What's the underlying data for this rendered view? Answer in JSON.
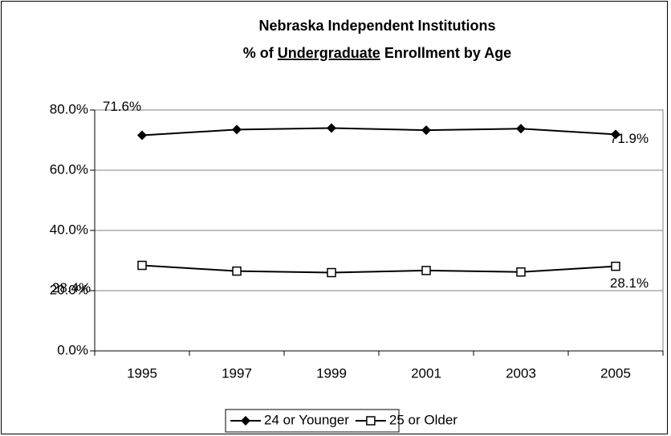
{
  "chart_data": {
    "type": "line",
    "title": "Nebraska Independent Institutions",
    "subtitle_parts": [
      "% of",
      "Undergraduate",
      "Enrollment by Age"
    ],
    "categories": [
      "1995",
      "1997",
      "1999",
      "2001",
      "2003",
      "2005"
    ],
    "series": [
      {
        "name": "24 or Younger",
        "color": "#000000",
        "marker": "diamond",
        "values": [
          71.6,
          73.5,
          74.0,
          73.3,
          73.8,
          71.9
        ],
        "value_labels": [
          "71.6%",
          null,
          null,
          null,
          null,
          "71.9%"
        ]
      },
      {
        "name": "25 or Older",
        "color": "#000000",
        "marker": "square",
        "values": [
          28.4,
          26.5,
          26.0,
          26.7,
          26.2,
          28.1
        ],
        "value_labels": [
          "28.4%",
          null,
          null,
          null,
          null,
          "28.1%"
        ]
      }
    ],
    "ylim": [
      0,
      80
    ],
    "yticks": [
      {
        "value": 0,
        "label": "0.0%"
      },
      {
        "value": 20,
        "label": "20.0%"
      },
      {
        "value": 40,
        "label": "40.0%"
      },
      {
        "value": 60,
        "label": "60.0%"
      },
      {
        "value": 80,
        "label": "80.0%"
      }
    ],
    "grid": true,
    "legend": "bottom"
  }
}
